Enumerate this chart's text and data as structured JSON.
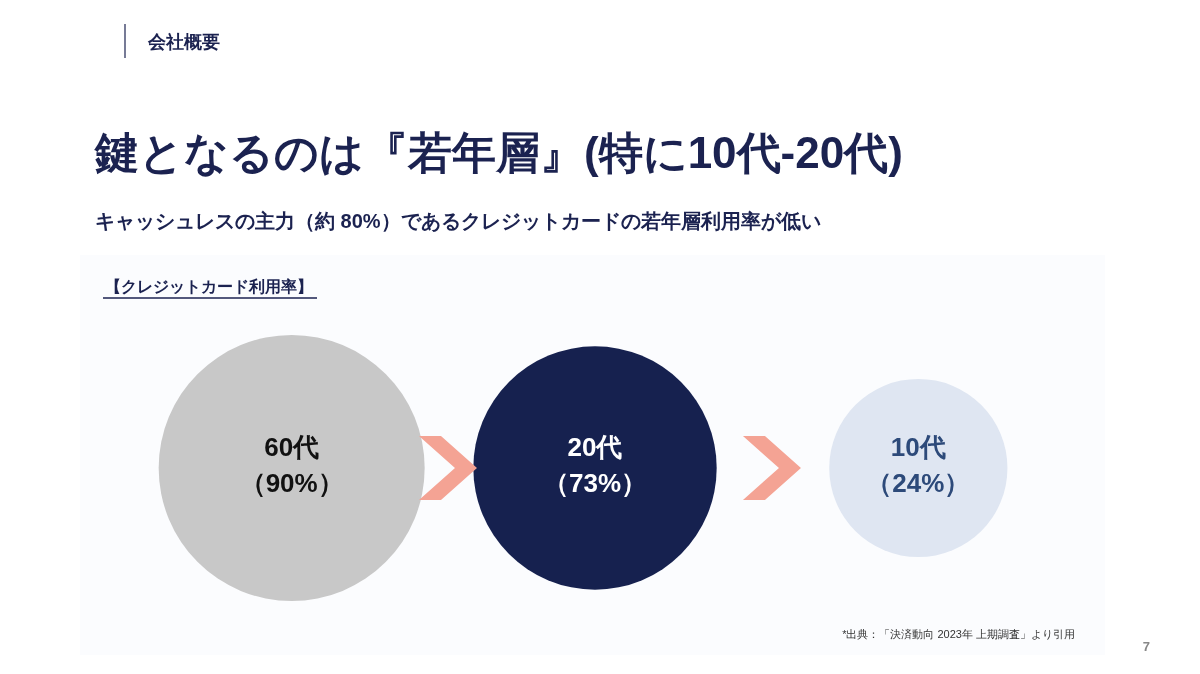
{
  "chart_data": {
    "type": "other",
    "title": "鍵となるのは『若年層』(特に10代-20代)",
    "subtitle": "キャッシュレスの主力（約 80%）であるクレジットカードの若年層利用率が低い",
    "annotations": [
      "会社概要",
      "【クレジットカード利用率】",
      "*出典：「決済動向 2023年 上期調査」より引用",
      "7"
    ],
    "categories": [
      "60代",
      "20代",
      "10代"
    ],
    "values": [
      90,
      73,
      24
    ],
    "value_labels": [
      "（90%）",
      "（73%）",
      "（24%）"
    ],
    "colors": [
      "#c8c8c8",
      "#16214f",
      "#dfe6f2"
    ]
  }
}
